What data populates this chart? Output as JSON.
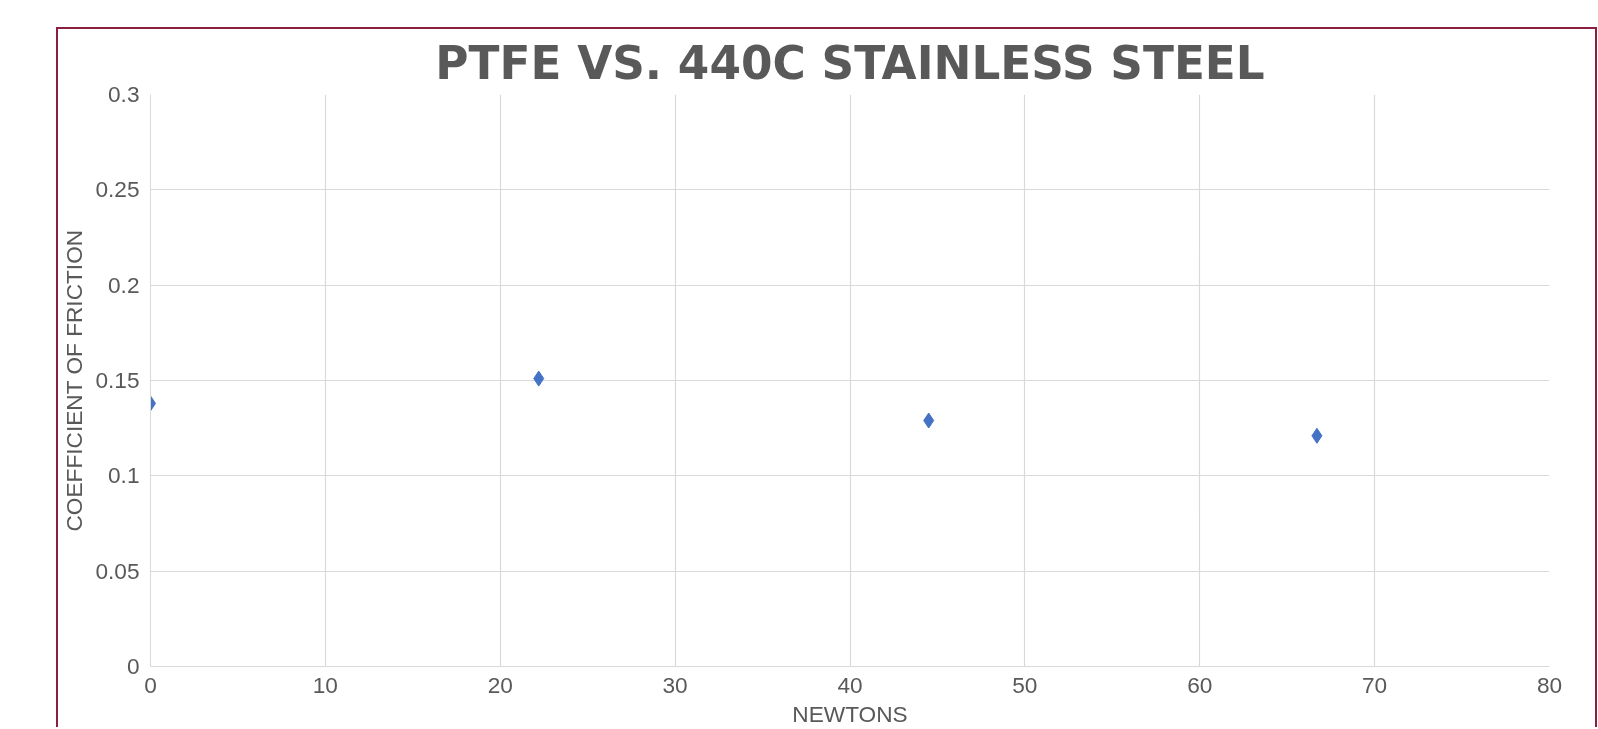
{
  "chart_data": {
    "type": "scatter",
    "title": "PTFE VS. 440C STAINLESS STEEL",
    "xlabel": "NEWTONS",
    "ylabel": "COEFFICIENT OF FRICTION",
    "x": [
      0,
      22.2,
      44.5,
      66.7
    ],
    "series": [
      {
        "color": "#4472c4",
        "values": [
          0.138,
          0.151,
          0.129,
          0.121
        ]
      }
    ],
    "xlim": [
      0,
      80
    ],
    "xticks": [
      0,
      10,
      20,
      30,
      40,
      50,
      60,
      70,
      80
    ],
    "ylim": [
      0,
      0.3
    ],
    "yticks": [
      0,
      0.05,
      0.1,
      0.15,
      0.2,
      0.25,
      0.3
    ],
    "grid": true,
    "marker": "diamond"
  }
}
